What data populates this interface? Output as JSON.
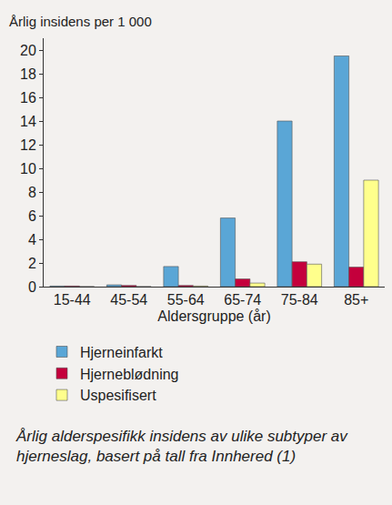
{
  "chart_data": {
    "type": "bar",
    "y_label": "Årlig insidens per 1 000",
    "x_label": "Aldersgruppe (år)",
    "caption": "Årlig alderspesifikk insidens av ulike subtyper av hjerneslag, basert på tall fra Innhered (1)",
    "categories": [
      "15-44",
      "45-54",
      "55-64",
      "65-74",
      "75-84",
      "85+"
    ],
    "series": [
      {
        "name": "Hjerneinfarkt",
        "color": "#5aa6d6",
        "values": [
          0.05,
          0.15,
          1.7,
          5.8,
          14.0,
          19.5
        ]
      },
      {
        "name": "Hjerneblødning",
        "color": "#c4003c",
        "values": [
          0.05,
          0.1,
          0.1,
          0.65,
          2.1,
          1.65
        ]
      },
      {
        "name": "Uspesifisert",
        "color": "#ffff8c",
        "values": [
          0,
          0,
          0.05,
          0.3,
          1.9,
          9.0
        ]
      }
    ],
    "ylim": [
      0,
      21
    ],
    "yticks": [
      0,
      2,
      4,
      6,
      8,
      10,
      12,
      14,
      16,
      18,
      20
    ],
    "grid": false,
    "legend": "bottom-left",
    "data_labels": false
  }
}
